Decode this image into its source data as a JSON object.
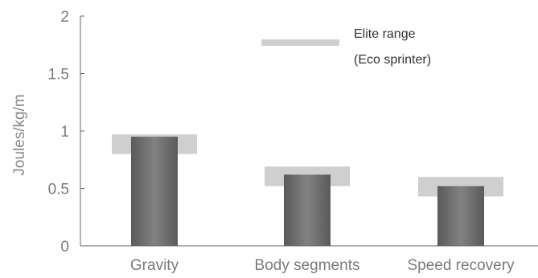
{
  "chart_data": {
    "type": "bar",
    "ylabel": "Joules/kg/m",
    "xlabel": "",
    "ylim": [
      0,
      2
    ],
    "yticks": [
      0,
      0.5,
      1,
      1.5,
      2
    ],
    "ytick_labels": [
      "0",
      "0.5",
      "1",
      "1.5",
      "2"
    ],
    "categories": [
      "Gravity",
      "Body segments",
      "Speed recovery"
    ],
    "values": [
      0.95,
      0.62,
      0.52
    ],
    "elite_range": [
      {
        "low": 0.8,
        "high": 0.97
      },
      {
        "low": 0.52,
        "high": 0.69
      },
      {
        "low": 0.43,
        "high": 0.6
      }
    ],
    "legend": {
      "line1": "Elite range",
      "line2": "(Eco sprinter)",
      "placement": "top-right"
    },
    "colors": {
      "bar_dark": "#555555",
      "bar_light": "#7a7a7a",
      "range": "#cfcfcf",
      "axis": "#666666"
    }
  }
}
